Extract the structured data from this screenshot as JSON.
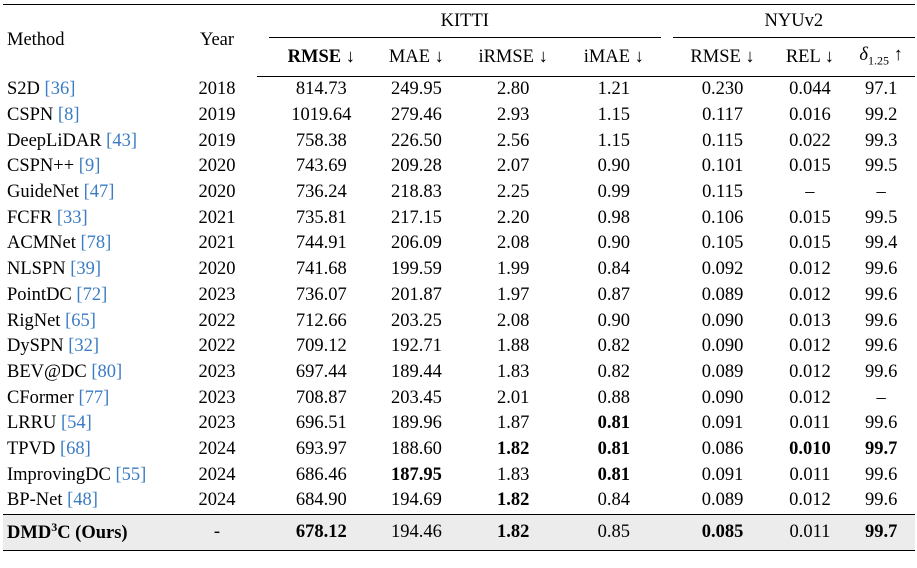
{
  "headers": {
    "method": "Method",
    "year": "Year",
    "kitti": "KITTI",
    "nyu": "NYUv2",
    "cols": [
      "RMSE ↓",
      "MAE ↓",
      "iRMSE ↓",
      "iMAE ↓",
      "RMSE ↓",
      "REL ↓",
      "δ1.25 ↑"
    ]
  },
  "rows": [
    {
      "name": "S2D",
      "ref": "[36]",
      "year": "2018",
      "vals": [
        "814.73",
        "249.95",
        "2.80",
        "1.21",
        "0.230",
        "0.044",
        "97.1"
      ],
      "bold": []
    },
    {
      "name": "CSPN",
      "ref": "[8]",
      "year": "2019",
      "vals": [
        "1019.64",
        "279.46",
        "2.93",
        "1.15",
        "0.117",
        "0.016",
        "99.2"
      ],
      "bold": []
    },
    {
      "name": "DeepLiDAR",
      "ref": "[43]",
      "year": "2019",
      "vals": [
        "758.38",
        "226.50",
        "2.56",
        "1.15",
        "0.115",
        "0.022",
        "99.3"
      ],
      "bold": []
    },
    {
      "name": "CSPN++",
      "ref": "[9]",
      "year": "2020",
      "vals": [
        "743.69",
        "209.28",
        "2.07",
        "0.90",
        "0.101",
        "0.015",
        "99.5"
      ],
      "bold": []
    },
    {
      "name": "GuideNet",
      "ref": "[47]",
      "year": "2020",
      "vals": [
        "736.24",
        "218.83",
        "2.25",
        "0.99",
        "0.115",
        "–",
        "–"
      ],
      "bold": []
    },
    {
      "name": "FCFR",
      "ref": "[33]",
      "year": "2021",
      "vals": [
        "735.81",
        "217.15",
        "2.20",
        "0.98",
        "0.106",
        "0.015",
        "99.5"
      ],
      "bold": []
    },
    {
      "name": "ACMNet",
      "ref": "[78]",
      "year": "2021",
      "vals": [
        "744.91",
        "206.09",
        "2.08",
        "0.90",
        "0.105",
        "0.015",
        "99.4"
      ],
      "bold": []
    },
    {
      "name": "NLSPN",
      "ref": "[39]",
      "year": "2020",
      "vals": [
        "741.68",
        "199.59",
        "1.99",
        "0.84",
        "0.092",
        "0.012",
        "99.6"
      ],
      "bold": []
    },
    {
      "name": "PointDC",
      "ref": "[72]",
      "year": "2023",
      "vals": [
        "736.07",
        "201.87",
        "1.97",
        "0.87",
        "0.089",
        "0.012",
        "99.6"
      ],
      "bold": []
    },
    {
      "name": "RigNet",
      "ref": "[65]",
      "year": "2022",
      "vals": [
        "712.66",
        "203.25",
        "2.08",
        "0.90",
        "0.090",
        "0.013",
        "99.6"
      ],
      "bold": []
    },
    {
      "name": "DySPN",
      "ref": "[32]",
      "year": "2022",
      "vals": [
        "709.12",
        "192.71",
        "1.88",
        "0.82",
        "0.090",
        "0.012",
        "99.6"
      ],
      "bold": []
    },
    {
      "name": "BEV@DC",
      "ref": "[80]",
      "year": "2023",
      "vals": [
        "697.44",
        "189.44",
        "1.83",
        "0.82",
        "0.089",
        "0.012",
        "99.6"
      ],
      "bold": []
    },
    {
      "name": "CFormer",
      "ref": "[77]",
      "year": "2023",
      "vals": [
        "708.87",
        "203.45",
        "2.01",
        "0.88",
        "0.090",
        "0.012",
        "–"
      ],
      "bold": []
    },
    {
      "name": "LRRU",
      "ref": "[54]",
      "year": "2023",
      "vals": [
        "696.51",
        "189.96",
        "1.87",
        "0.81",
        "0.091",
        "0.011",
        "99.6"
      ],
      "bold": [
        3
      ]
    },
    {
      "name": "TPVD",
      "ref": "[68]",
      "year": "2024",
      "vals": [
        "693.97",
        "188.60",
        "1.82",
        "0.81",
        "0.086",
        "0.010",
        "99.7"
      ],
      "bold": [
        2,
        3,
        5,
        6
      ]
    },
    {
      "name": "ImprovingDC",
      "ref": "[55]",
      "year": "2024",
      "vals": [
        "686.46",
        "187.95",
        "1.83",
        "0.81",
        "0.091",
        "0.011",
        "99.6"
      ],
      "bold": [
        1,
        3
      ]
    },
    {
      "name": "BP-Net",
      "ref": "[48]",
      "year": "2024",
      "vals": [
        "684.90",
        "194.69",
        "1.82",
        "0.84",
        "0.089",
        "0.012",
        "99.6"
      ],
      "bold": [
        2
      ]
    }
  ],
  "ours": {
    "name_pre": "DMD",
    "name_sup": "3",
    "name_post": "C (Ours)",
    "year": "-",
    "vals": [
      "678.12",
      "194.46",
      "1.82",
      "0.85",
      "0.085",
      "0.011",
      "99.7"
    ],
    "bold": [
      0,
      2,
      4,
      6
    ]
  }
}
